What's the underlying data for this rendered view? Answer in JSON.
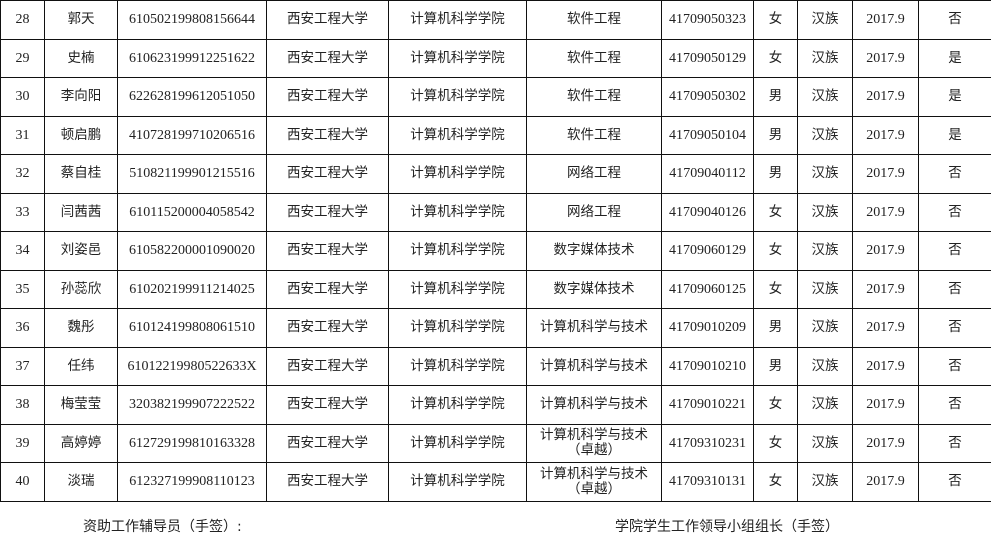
{
  "rows": [
    {
      "no": "28",
      "name": "郭天",
      "id": "610502199808156644",
      "school": "西安工程大学",
      "college": "计算机科学学院",
      "major": "软件工程",
      "sid": "41709050323",
      "gender": "女",
      "ethnicity": "汉族",
      "enroll": "2017.9",
      "flag": "否"
    },
    {
      "no": "29",
      "name": "史楠",
      "id": "610623199912251622",
      "school": "西安工程大学",
      "college": "计算机科学学院",
      "major": "软件工程",
      "sid": "41709050129",
      "gender": "女",
      "ethnicity": "汉族",
      "enroll": "2017.9",
      "flag": "是"
    },
    {
      "no": "30",
      "name": "李向阳",
      "id": "622628199612051050",
      "school": "西安工程大学",
      "college": "计算机科学学院",
      "major": "软件工程",
      "sid": "41709050302",
      "gender": "男",
      "ethnicity": "汉族",
      "enroll": "2017.9",
      "flag": "是"
    },
    {
      "no": "31",
      "name": "顿启鹏",
      "id": "410728199710206516",
      "school": "西安工程大学",
      "college": "计算机科学学院",
      "major": "软件工程",
      "sid": "41709050104",
      "gender": "男",
      "ethnicity": "汉族",
      "enroll": "2017.9",
      "flag": "是"
    },
    {
      "no": "32",
      "name": "蔡自桂",
      "id": "510821199901215516",
      "school": "西安工程大学",
      "college": "计算机科学学院",
      "major": "网络工程",
      "sid": "41709040112",
      "gender": "男",
      "ethnicity": "汉族",
      "enroll": "2017.9",
      "flag": "否"
    },
    {
      "no": "33",
      "name": "闫茜茜",
      "id": "610115200004058542",
      "school": "西安工程大学",
      "college": "计算机科学学院",
      "major": "网络工程",
      "sid": "41709040126",
      "gender": "女",
      "ethnicity": "汉族",
      "enroll": "2017.9",
      "flag": "否"
    },
    {
      "no": "34",
      "name": "刘姿邑",
      "id": "610582200001090020",
      "school": "西安工程大学",
      "college": "计算机科学学院",
      "major": "数字媒体技术",
      "sid": "41709060129",
      "gender": "女",
      "ethnicity": "汉族",
      "enroll": "2017.9",
      "flag": "否"
    },
    {
      "no": "35",
      "name": "孙蕊欣",
      "id": "610202199911214025",
      "school": "西安工程大学",
      "college": "计算机科学学院",
      "major": "数字媒体技术",
      "sid": "41709060125",
      "gender": "女",
      "ethnicity": "汉族",
      "enroll": "2017.9",
      "flag": "否"
    },
    {
      "no": "36",
      "name": "魏彤",
      "id": "610124199808061510",
      "school": "西安工程大学",
      "college": "计算机科学学院",
      "major": "计算机科学与技术",
      "sid": "41709010209",
      "gender": "男",
      "ethnicity": "汉族",
      "enroll": "2017.9",
      "flag": "否"
    },
    {
      "no": "37",
      "name": "任纬",
      "id": "61012219980522633X",
      "school": "西安工程大学",
      "college": "计算机科学学院",
      "major": "计算机科学与技术",
      "sid": "41709010210",
      "gender": "男",
      "ethnicity": "汉族",
      "enroll": "2017.9",
      "flag": "否"
    },
    {
      "no": "38",
      "name": "梅莹莹",
      "id": "320382199907222522",
      "school": "西安工程大学",
      "college": "计算机科学学院",
      "major": "计算机科学与技术",
      "sid": "41709010221",
      "gender": "女",
      "ethnicity": "汉族",
      "enroll": "2017.9",
      "flag": "否"
    },
    {
      "no": "39",
      "name": "高婷婷",
      "id": "612729199810163328",
      "school": "西安工程大学",
      "college": "计算机科学学院",
      "major": "计算机科学与技术（卓越）",
      "sid": "41709310231",
      "gender": "女",
      "ethnicity": "汉族",
      "enroll": "2017.9",
      "flag": "否"
    },
    {
      "no": "40",
      "name": "淡瑞",
      "id": "612327199908110123",
      "school": "西安工程大学",
      "college": "计算机科学学院",
      "major": "计算机科学与技术（卓越）",
      "sid": "41709310131",
      "gender": "女",
      "ethnicity": "汉族",
      "enroll": "2017.9",
      "flag": "否"
    }
  ],
  "footer": {
    "counselor_sign": "资助工作辅导员（手签）:",
    "leader_sign": "学院学生工作领导小组组长（手签）"
  }
}
